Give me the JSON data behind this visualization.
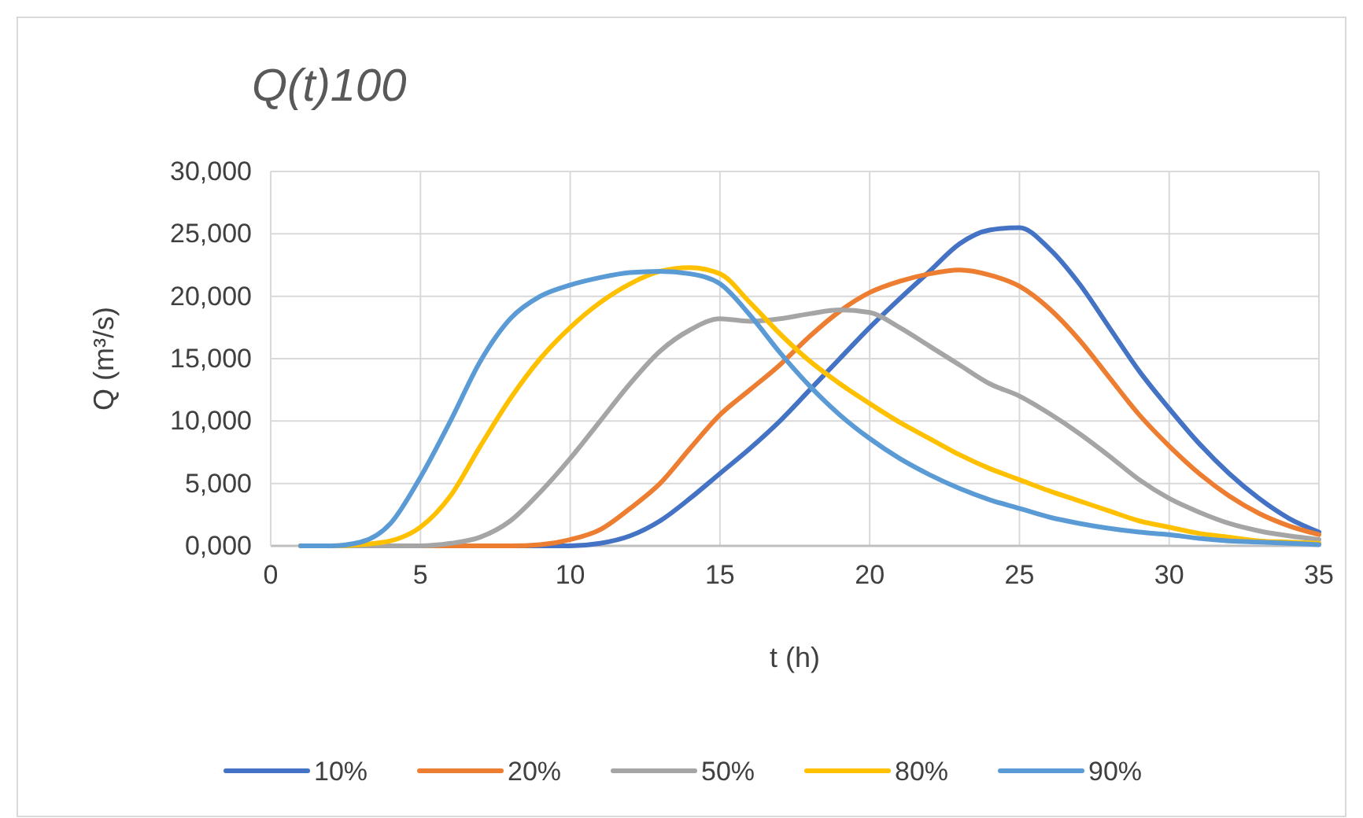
{
  "chart_data": {
    "type": "line",
    "title": "Q(t)100",
    "xlabel": "t (h)",
    "ylabel": "Q (m³/s)",
    "x": [
      1,
      2,
      3,
      4,
      5,
      6,
      7,
      8,
      9,
      10,
      11,
      12,
      13,
      14,
      15,
      16,
      17,
      18,
      19,
      20,
      21,
      22,
      23,
      24,
      25,
      26,
      27,
      28,
      29,
      30,
      31,
      32,
      33,
      34,
      35
    ],
    "series": [
      {
        "name": "10%",
        "color": "#4472c4",
        "values": [
          0,
          0,
          0,
          0,
          0,
          0,
          0,
          0,
          0,
          0,
          200,
          800,
          2000,
          3800,
          5800,
          7800,
          10000,
          12500,
          15000,
          17500,
          19800,
          22000,
          24200,
          25300,
          25500,
          23800,
          21000,
          17500,
          14000,
          11000,
          8200,
          5800,
          3800,
          2200,
          1100
        ]
      },
      {
        "name": "20%",
        "color": "#ed7d31",
        "values": [
          null,
          null,
          null,
          0,
          0,
          0,
          0,
          0,
          100,
          500,
          1300,
          3000,
          5000,
          7800,
          10500,
          12500,
          14500,
          16800,
          18800,
          20300,
          21200,
          21800,
          22100,
          21700,
          20800,
          19000,
          16500,
          13500,
          10500,
          8000,
          5800,
          4000,
          2600,
          1600,
          900
        ]
      },
      {
        "name": "50%",
        "color": "#a5a5a5",
        "values": [
          0,
          0,
          0,
          0,
          0,
          200,
          700,
          2000,
          4300,
          7000,
          10000,
          13000,
          15600,
          17300,
          18200,
          18000,
          18200,
          18600,
          18900,
          18700,
          17500,
          16000,
          14500,
          13000,
          12000,
          10600,
          9000,
          7200,
          5300,
          3800,
          2700,
          1800,
          1200,
          800,
          500
        ]
      },
      {
        "name": "80%",
        "color": "#ffc000",
        "values": [
          0,
          0,
          100,
          400,
          1500,
          4000,
          8000,
          11800,
          15000,
          17500,
          19500,
          21000,
          22000,
          22300,
          21800,
          19500,
          17000,
          14800,
          13000,
          11400,
          9900,
          8600,
          7300,
          6200,
          5300,
          4400,
          3600,
          2800,
          2000,
          1500,
          1000,
          700,
          400,
          300,
          200
        ]
      },
      {
        "name": "90%",
        "color": "#5b9bd5",
        "values": [
          0,
          0,
          300,
          1800,
          5500,
          10000,
          14800,
          18200,
          20000,
          20900,
          21500,
          21900,
          22000,
          21800,
          21000,
          18500,
          15500,
          12800,
          10500,
          8600,
          7000,
          5700,
          4600,
          3700,
          3000,
          2300,
          1800,
          1400,
          1100,
          900,
          600,
          400,
          300,
          200,
          100
        ]
      }
    ],
    "xlim": [
      0,
      35
    ],
    "xticks": [
      0,
      5,
      10,
      15,
      20,
      25,
      30,
      35
    ],
    "ylim": [
      0,
      30000
    ],
    "yticks": [
      {
        "value": 0,
        "label": "0,000"
      },
      {
        "value": 5000,
        "label": "5,000"
      },
      {
        "value": 10000,
        "label": "10,000"
      },
      {
        "value": 15000,
        "label": "15,000"
      },
      {
        "value": 20000,
        "label": "20,000"
      },
      {
        "value": 25000,
        "label": "25,000"
      },
      {
        "value": 30000,
        "label": "30,000"
      }
    ],
    "grid": true,
    "legend": "bottom",
    "marker": "none",
    "line_style": "solid"
  }
}
